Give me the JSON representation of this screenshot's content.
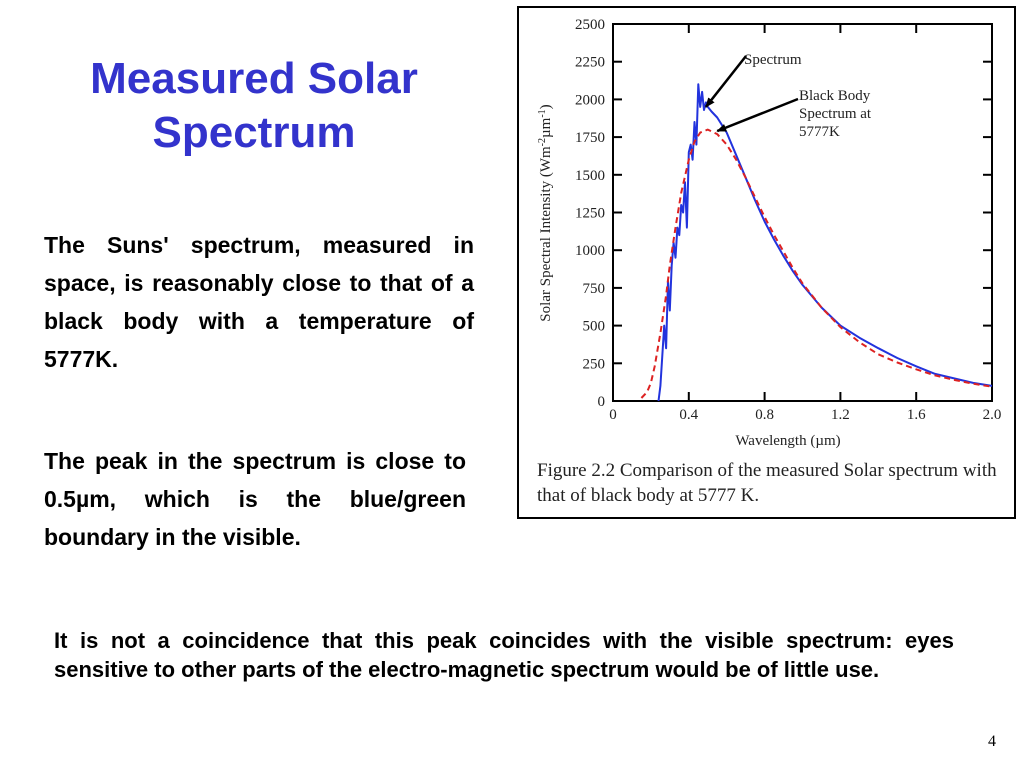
{
  "slide": {
    "title_line1": "Measured Solar",
    "title_line2": "Spectrum",
    "para1": "The Suns' spectrum, measured in space, is reasonably close to that of a black body with a temperature of 5777K.",
    "para2": "The peak in the spectrum is close to 0.5µm, which is the blue/green boundary in the visible.",
    "bottom_text": "It is not a coincidence that this peak coincides with the visible spectrum: eyes sensitive to other parts of the electro-magnetic spectrum would be of little use.",
    "page_number": "4"
  },
  "figure": {
    "caption": "Figure 2.2 Comparison of the measured Solar spectrum with that of black body at 5777 K."
  },
  "chart_data": {
    "type": "line",
    "xlabel": "Wavelength (µm)",
    "ylabel_parts": [
      "Solar Spectral Intensity (Wm",
      "-2",
      "µm",
      "-1",
      ")"
    ],
    "xlim": [
      0,
      2.0
    ],
    "ylim": [
      0,
      2500
    ],
    "x_ticks": [
      0,
      0.4,
      0.8,
      1.2,
      1.6,
      2.0
    ],
    "x_tick_labels": [
      "0",
      "0.4",
      "0.8",
      "1.2",
      "1.6",
      "2.0"
    ],
    "y_ticks": [
      0,
      250,
      500,
      750,
      1000,
      1250,
      1500,
      1750,
      2000,
      2250,
      2500
    ],
    "y_tick_labels": [
      "0",
      "250",
      "500",
      "750",
      "1000",
      "1250",
      "1500",
      "1750",
      "2000",
      "2250",
      "2500"
    ],
    "grid": false,
    "colors": {
      "measured": "#2233dd",
      "blackbody": "#dd2222"
    },
    "annotations": [
      {
        "id": "spectrum",
        "lines": [
          "Spectrum"
        ],
        "target": [
          0.49,
          1950
        ]
      },
      {
        "id": "blackbody",
        "lines": [
          "Black Body",
          "Spectrum at",
          "5777K"
        ],
        "target": [
          0.55,
          1790
        ]
      }
    ],
    "series": [
      {
        "id": "measured",
        "style": "solid",
        "x": [
          0.24,
          0.25,
          0.26,
          0.27,
          0.28,
          0.29,
          0.3,
          0.31,
          0.32,
          0.33,
          0.34,
          0.35,
          0.36,
          0.37,
          0.38,
          0.39,
          0.4,
          0.41,
          0.42,
          0.43,
          0.44,
          0.45,
          0.46,
          0.47,
          0.48,
          0.49,
          0.5,
          0.52,
          0.55,
          0.6,
          0.65,
          0.7,
          0.75,
          0.8,
          0.85,
          0.9,
          0.95,
          1.0,
          1.1,
          1.2,
          1.3,
          1.4,
          1.5,
          1.6,
          1.7,
          1.8,
          1.9,
          2.0
        ],
        "y": [
          0,
          100,
          300,
          500,
          350,
          800,
          600,
          900,
          1050,
          950,
          1150,
          1100,
          1300,
          1250,
          1450,
          1150,
          1650,
          1700,
          1600,
          1850,
          1700,
          2100,
          1950,
          2050,
          1930,
          1980,
          1950,
          1920,
          1880,
          1780,
          1630,
          1480,
          1330,
          1190,
          1070,
          960,
          860,
          770,
          620,
          500,
          420,
          350,
          285,
          230,
          180,
          150,
          120,
          100
        ]
      },
      {
        "id": "blackbody",
        "style": "dashed",
        "x": [
          0.15,
          0.18,
          0.2,
          0.22,
          0.25,
          0.28,
          0.3,
          0.33,
          0.36,
          0.4,
          0.43,
          0.46,
          0.5,
          0.55,
          0.6,
          0.65,
          0.7,
          0.75,
          0.8,
          0.85,
          0.9,
          0.95,
          1.0,
          1.1,
          1.2,
          1.3,
          1.4,
          1.5,
          1.6,
          1.7,
          1.8,
          1.9,
          2.0
        ],
        "y": [
          20,
          60,
          120,
          230,
          450,
          700,
          900,
          1150,
          1380,
          1600,
          1720,
          1780,
          1800,
          1770,
          1700,
          1600,
          1480,
          1350,
          1220,
          1100,
          990,
          880,
          780,
          620,
          490,
          390,
          310,
          255,
          210,
          170,
          140,
          115,
          95
        ]
      }
    ]
  }
}
